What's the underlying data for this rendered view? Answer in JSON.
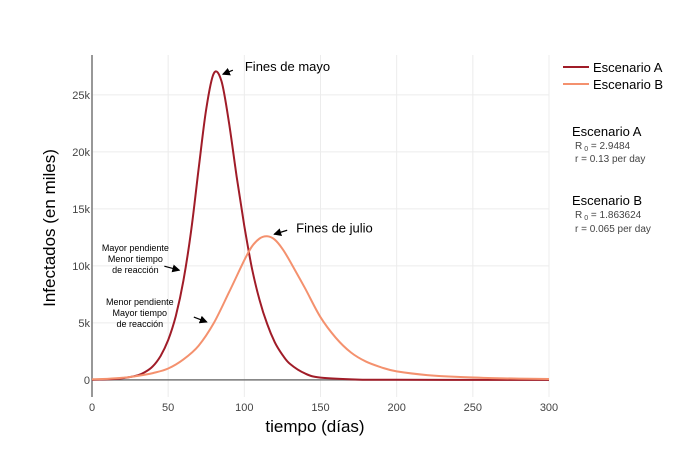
{
  "colors": {
    "scenario_a": "#a01c28",
    "scenario_b": "#f4916e",
    "grid": "#ececec",
    "axis": "#777777"
  },
  "chart_data": {
    "type": "line",
    "xlabel": "tiempo (días)",
    "ylabel": "Infectados (en miles)",
    "xlim": [
      0,
      300
    ],
    "ylim": [
      -1500,
      28500
    ],
    "x_ticks": [
      0,
      50,
      100,
      150,
      200,
      250,
      300
    ],
    "x_tick_labels": [
      "0",
      "50",
      "100",
      "150",
      "200",
      "250",
      "300"
    ],
    "y_ticks": [
      0,
      5000,
      10000,
      15000,
      20000,
      25000
    ],
    "y_tick_labels": [
      "0",
      "5k",
      "10k",
      "15k",
      "20k",
      "25k"
    ],
    "grid": true,
    "legend_position": "top-right",
    "series": [
      {
        "name": "Escenario A",
        "x": [
          0,
          10,
          20,
          30,
          35,
          40,
          45,
          50,
          55,
          60,
          65,
          70,
          75,
          80,
          85,
          90,
          95,
          100,
          105,
          110,
          115,
          120,
          125,
          130,
          140,
          150,
          175,
          200,
          250,
          300
        ],
        "y": [
          20,
          50,
          150,
          400,
          700,
          1200,
          2100,
          3500,
          5600,
          8700,
          13000,
          18500,
          23800,
          26900,
          26200,
          22500,
          17800,
          13500,
          9800,
          7000,
          4900,
          3300,
          2200,
          1400,
          550,
          200,
          30,
          10,
          0,
          0
        ]
      },
      {
        "name": "Escenario B",
        "x": [
          0,
          10,
          20,
          30,
          40,
          50,
          60,
          70,
          80,
          90,
          100,
          105,
          110,
          115,
          120,
          125,
          130,
          140,
          150,
          160,
          170,
          180,
          190,
          200,
          220,
          240,
          260,
          280,
          300
        ],
        "y": [
          50,
          90,
          180,
          350,
          600,
          1000,
          1800,
          3000,
          5000,
          7700,
          10500,
          11700,
          12400,
          12600,
          12300,
          11500,
          10400,
          8000,
          5500,
          3700,
          2400,
          1600,
          1100,
          750,
          420,
          260,
          170,
          110,
          80
        ]
      }
    ],
    "annotations": [
      {
        "text": "Fines de mayo",
        "x": 80,
        "y": 26900
      },
      {
        "text": "Fines de julio",
        "x": 115,
        "y": 12600
      },
      {
        "lines": [
          "Mayor pendiente",
          "Menor tiempo",
          "de reacción"
        ],
        "x": 58,
        "y": 9800
      },
      {
        "lines": [
          "Menor  pendiente",
          "Mayor tiempo",
          "de reacción"
        ],
        "x": 78,
        "y": 4900
      }
    ]
  },
  "legend": [
    {
      "label": "Escenario A",
      "color": "#a01c28"
    },
    {
      "label": "Escenario B",
      "color": "#f4916e"
    }
  ],
  "parameters": [
    {
      "title": "Escenario A",
      "r0_label": "R",
      "r0_sub": "0",
      "r0_value": " = 2.9484",
      "r_line": "r = 0.13  per day"
    },
    {
      "title": "Escenario B",
      "r0_label": "R",
      "r0_sub": "0",
      "r0_value": " = 1.863624",
      "r_line": "r = 0.065  per day"
    }
  ]
}
